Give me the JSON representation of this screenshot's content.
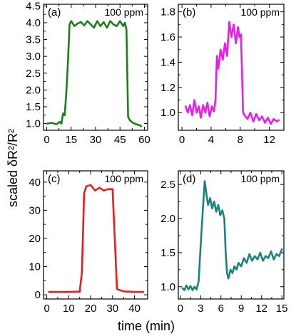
{
  "figure": {
    "ylabel": "scaled δR²/R²",
    "xlabel": "time (min)"
  },
  "chart_data": [
    {
      "type": "line",
      "panel_label": "(a)",
      "annotation": "100 ppm",
      "color": "#1e7d1e",
      "xlim": [
        -2,
        62
      ],
      "ylim": [
        0.8,
        4.55
      ],
      "xticks": [
        0,
        15,
        30,
        45,
        60
      ],
      "yticks": [
        1.0,
        1.5,
        2.0,
        2.5,
        3.0,
        3.5,
        4.0,
        4.5
      ],
      "xtick_labels": [
        "0",
        "15",
        "30",
        "45",
        "60"
      ],
      "ytick_labels": [
        "1.0",
        "1.5",
        "2.0",
        "2.5",
        "3.0",
        "3.5",
        "4.0",
        "4.5"
      ],
      "x": [
        0,
        3,
        6,
        8,
        9,
        10,
        11,
        12,
        13,
        14,
        15,
        17,
        19,
        21,
        23,
        25,
        27,
        29,
        31,
        33,
        35,
        37,
        39,
        41,
        43,
        45,
        47,
        48,
        49,
        50,
        51,
        53,
        55,
        57,
        58
      ],
      "y": [
        1.0,
        1.02,
        0.98,
        1.05,
        1.0,
        1.3,
        1.25,
        1.9,
        2.8,
        3.95,
        4.05,
        3.9,
        3.98,
        4.02,
        3.92,
        4.05,
        3.95,
        3.85,
        4.05,
        3.9,
        4.02,
        3.85,
        4.05,
        3.95,
        3.9,
        4.05,
        3.9,
        4.0,
        3.8,
        1.2,
        1.1,
        1.02,
        0.98,
        0.95,
        0.92
      ]
    },
    {
      "type": "line",
      "panel_label": "(b)",
      "annotation": "100 ppm",
      "color": "#e61ee6",
      "xlim": [
        -0.5,
        14
      ],
      "ylim": [
        0.86,
        1.86
      ],
      "xticks": [
        0,
        4,
        8,
        12
      ],
      "yticks": [
        1.0,
        1.2,
        1.4,
        1.6,
        1.8
      ],
      "xtick_labels": [
        "0",
        "4",
        "8",
        "12"
      ],
      "ytick_labels": [
        "1.0",
        "1.2",
        "1.4",
        "1.6",
        "1.8"
      ],
      "x": [
        0.5,
        0.8,
        1.1,
        1.4,
        1.7,
        2.0,
        2.3,
        2.6,
        2.9,
        3.2,
        3.5,
        3.8,
        4.1,
        4.4,
        4.6,
        4.8,
        5.0,
        5.3,
        5.6,
        5.9,
        6.2,
        6.5,
        6.8,
        7.1,
        7.4,
        7.7,
        7.9,
        8.1,
        8.4,
        8.7,
        9.0,
        9.4,
        9.8,
        10.2,
        10.6,
        11.0,
        11.4,
        11.8,
        12.2,
        12.6,
        13.0,
        13.3
      ],
      "y": [
        1.05,
        1.0,
        1.06,
        0.98,
        1.1,
        1.0,
        1.05,
        0.96,
        1.06,
        1.0,
        1.08,
        0.97,
        1.05,
        1.01,
        1.1,
        1.45,
        1.35,
        1.5,
        1.42,
        1.55,
        1.45,
        1.72,
        1.6,
        1.7,
        1.55,
        1.68,
        1.6,
        1.62,
        1.0,
        0.97,
        0.95,
        1.0,
        0.93,
        0.99,
        0.94,
        0.97,
        0.92,
        0.96,
        0.91,
        0.95,
        0.93,
        0.94
      ]
    },
    {
      "type": "line",
      "panel_label": "(c)",
      "annotation": "100 ppm",
      "color": "#e61e1e",
      "xlim": [
        -1.5,
        46
      ],
      "ylim": [
        -1.5,
        44
      ],
      "xticks": [
        0,
        10,
        20,
        30,
        40
      ],
      "yticks": [
        0,
        10,
        20,
        30,
        40
      ],
      "xtick_labels": [
        "0",
        "10",
        "20",
        "30",
        "40"
      ],
      "ytick_labels": [
        "0",
        "10",
        "20",
        "30",
        "40"
      ],
      "x": [
        1,
        5,
        10,
        15,
        16,
        17,
        18,
        20,
        22,
        24,
        26,
        28,
        30,
        31,
        32,
        35,
        40,
        44
      ],
      "y": [
        1.0,
        1.0,
        1.0,
        1.1,
        8,
        36,
        38.5,
        39,
        37,
        38,
        37,
        37.5,
        37.5,
        20,
        2,
        1.2,
        1.0,
        1.0
      ]
    },
    {
      "type": "line",
      "panel_label": "(d)",
      "annotation": "100 ppm",
      "color": "#1e8080",
      "xlim": [
        -0.3,
        15.3
      ],
      "ylim": [
        0.82,
        2.7
      ],
      "xticks": [
        0,
        3,
        6,
        9,
        12,
        15
      ],
      "yticks": [
        1.0,
        1.5,
        2.0,
        2.5
      ],
      "xtick_labels": [
        "0",
        "3",
        "6",
        "9",
        "12",
        "15"
      ],
      "ytick_labels": [
        "1.0",
        "1.5",
        "2.0",
        "2.5"
      ],
      "x": [
        0.3,
        0.6,
        0.9,
        1.2,
        1.5,
        1.8,
        2.1,
        2.4,
        2.7,
        3.0,
        3.3,
        3.6,
        3.8,
        4.1,
        4.4,
        4.7,
        5.0,
        5.3,
        5.6,
        5.9,
        6.2,
        6.5,
        6.7,
        6.9,
        7.1,
        7.4,
        7.7,
        8.0,
        8.3,
        8.6,
        9.0,
        9.4,
        9.8,
        10.2,
        10.6,
        11.0,
        11.4,
        11.8,
        12.2,
        12.6,
        13.0,
        13.4,
        13.8,
        14.2,
        14.6,
        15.0
      ],
      "y": [
        0.98,
        0.95,
        1.02,
        0.96,
        1.01,
        0.95,
        1.0,
        0.96,
        1.08,
        1.6,
        2.1,
        2.55,
        2.4,
        2.2,
        2.3,
        2.15,
        2.25,
        2.1,
        2.2,
        2.05,
        2.12,
        2.0,
        1.5,
        1.2,
        1.12,
        1.25,
        1.2,
        1.3,
        1.25,
        1.35,
        1.3,
        1.42,
        1.35,
        1.48,
        1.38,
        1.45,
        1.4,
        1.5,
        1.38,
        1.45,
        1.42,
        1.52,
        1.4,
        1.48,
        1.45,
        1.55
      ]
    }
  ]
}
